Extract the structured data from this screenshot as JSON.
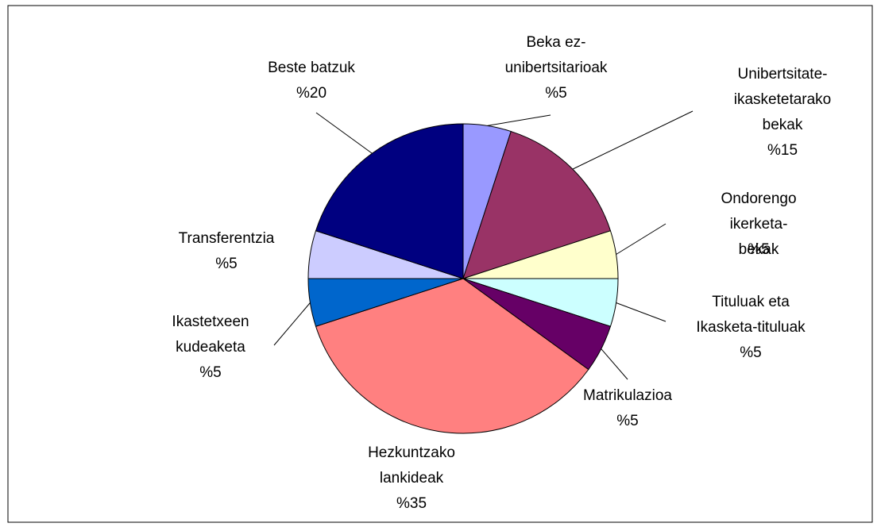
{
  "chart_data": {
    "type": "pie",
    "categories": [
      "Beka ez-\nunibertsitarioak",
      "Unibertsitate-\nikasketetarako\nbekak",
      "Ondorengo ikerketa-\nbekak",
      "Tituluak eta\nIkasketa-tituluak",
      "Matrikulazioa",
      "Hezkuntzako\nlankideak",
      "Ikastetxeen\nkudeaketa",
      "Transferentzia",
      "Beste batzuk"
    ],
    "values": [
      5,
      15,
      5,
      5,
      5,
      35,
      5,
      5,
      20
    ],
    "value_labels": [
      "%5",
      "%15",
      "%5",
      "%5",
      "%5",
      "%35",
      "%5",
      "%5",
      "%20"
    ],
    "colors": [
      "#9999ff",
      "#993366",
      "#ffffcc",
      "#ccffff",
      "#660066",
      "#ff8080",
      "#0066cc",
      "#ccccff",
      "#000080"
    ]
  }
}
